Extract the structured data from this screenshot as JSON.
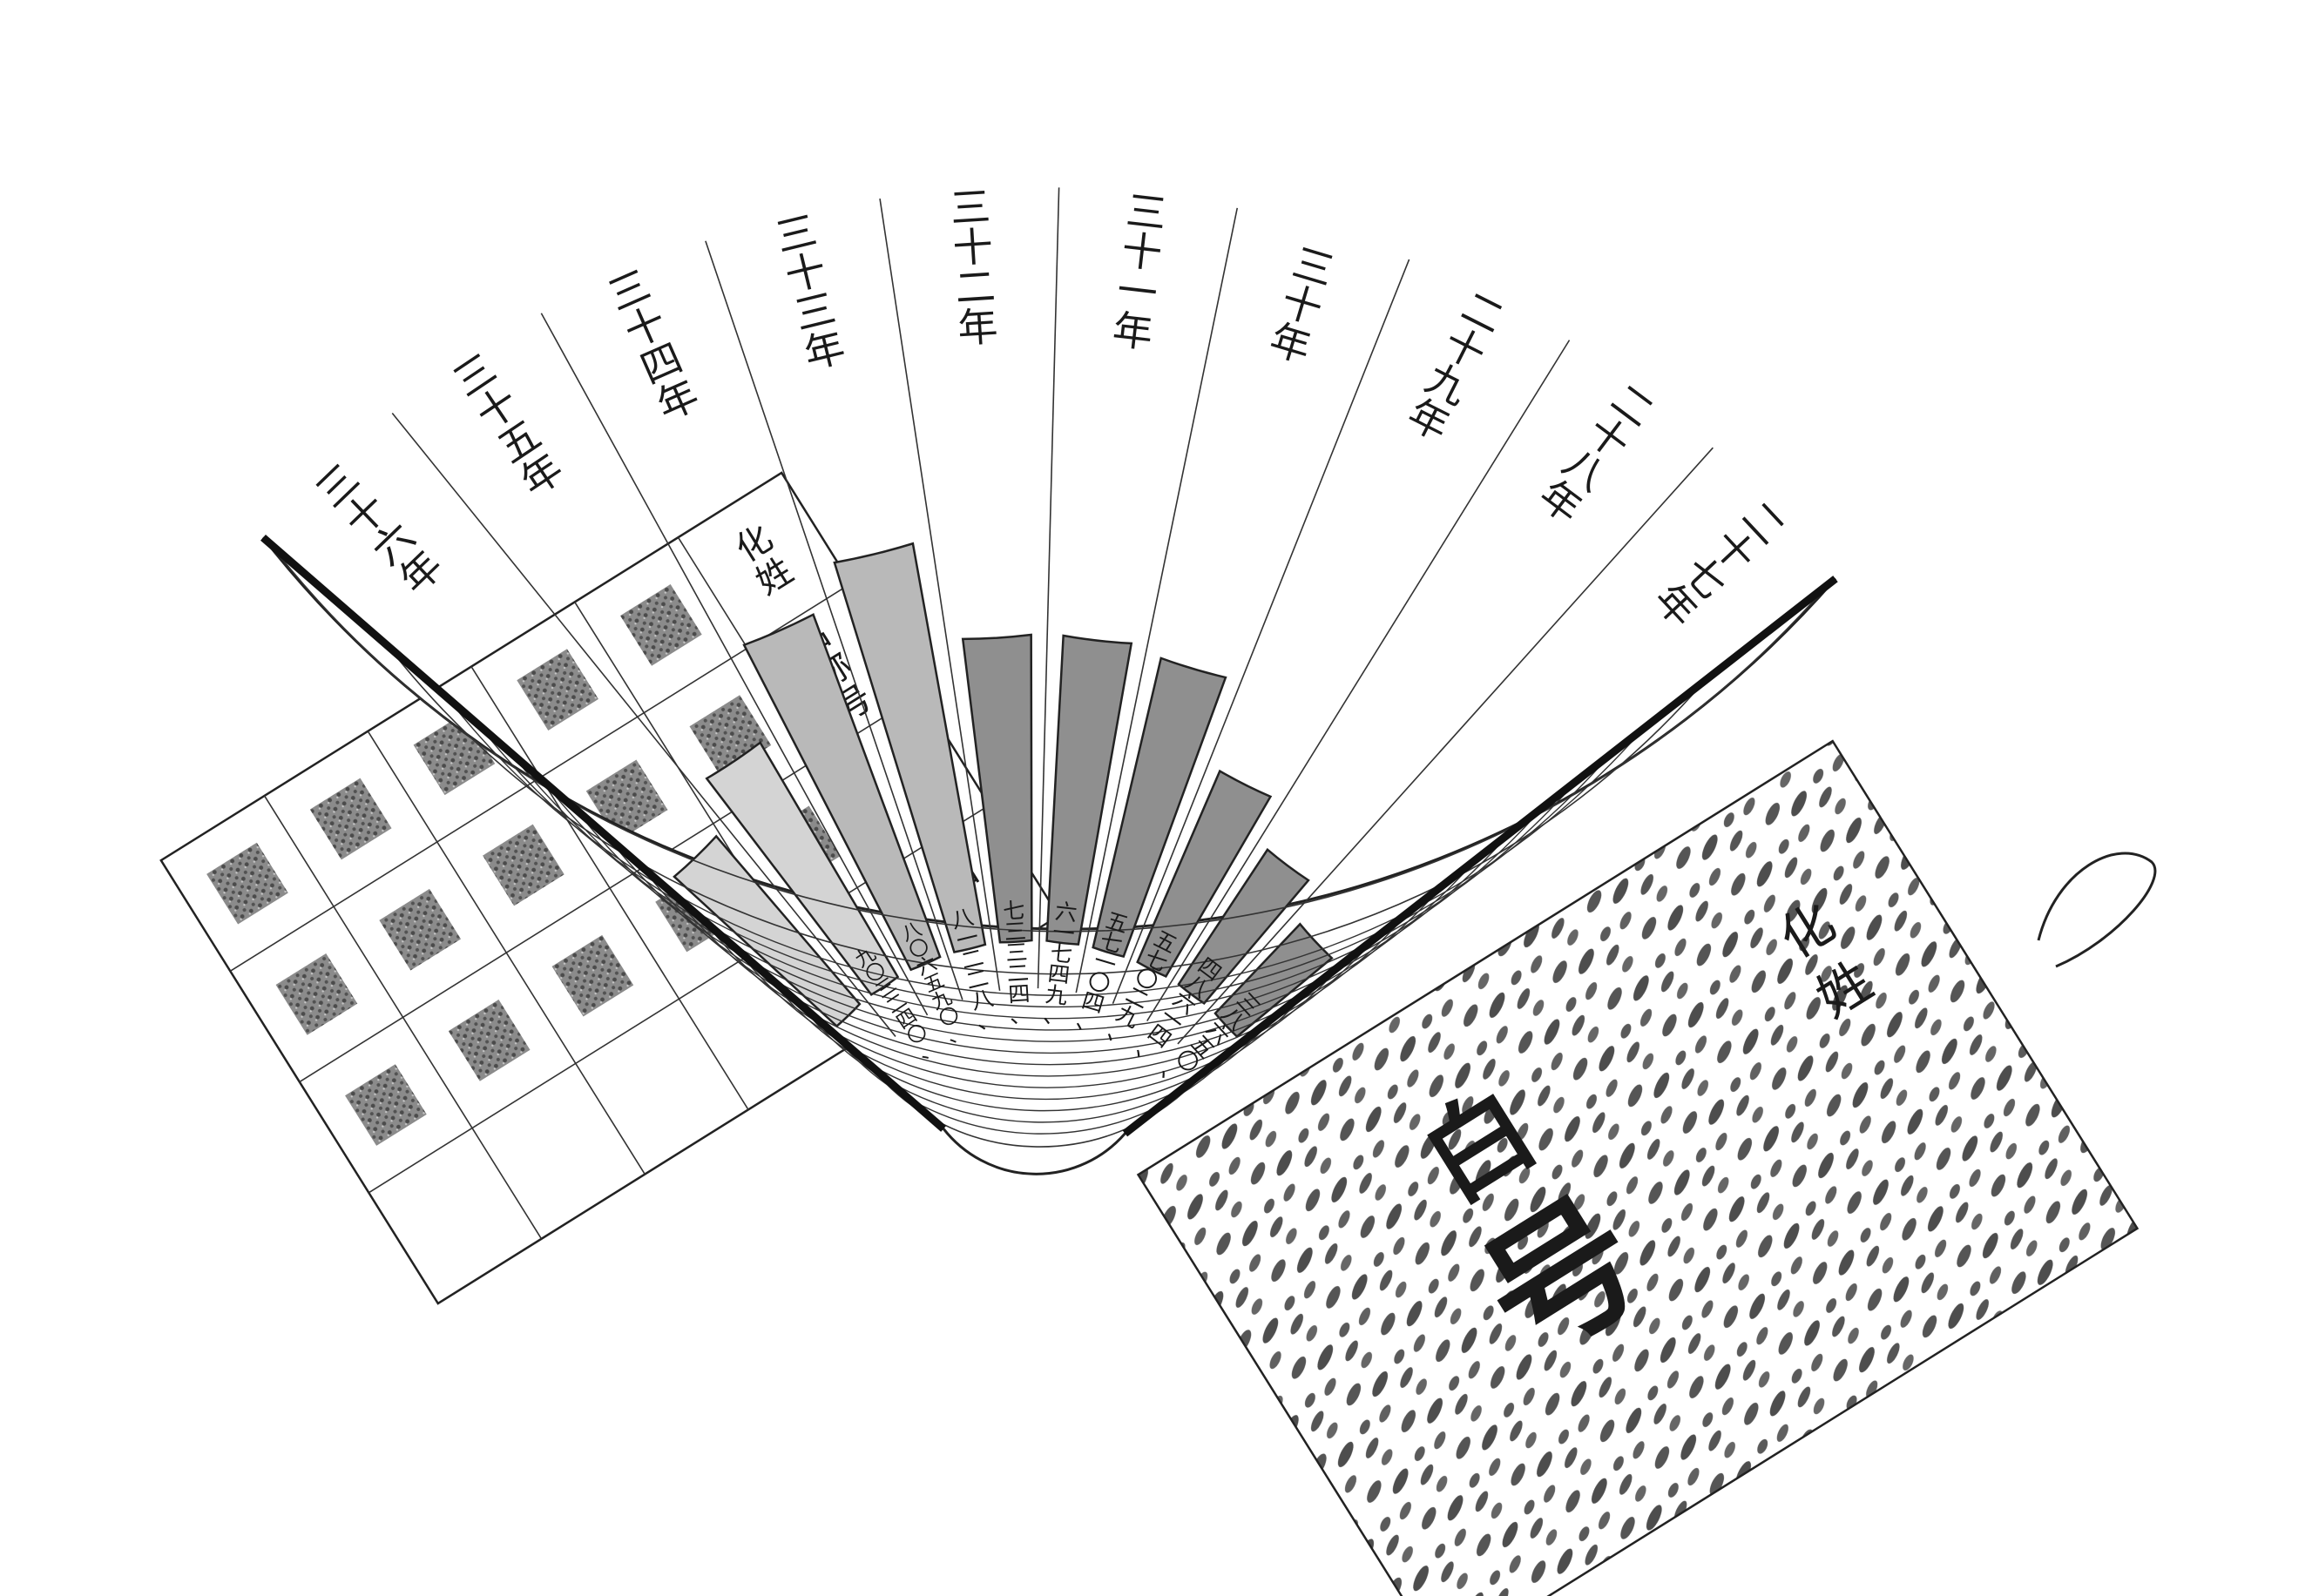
{
  "chart_data": {
    "type": "bar",
    "layout": "radial-fan",
    "categories": [
      "三十六年",
      "三十五年",
      "三十四年",
      "三十三年",
      "三十二年",
      "三十一年",
      "三十年",
      "二十九年",
      "二十八年",
      "二十七年"
    ],
    "value_labels": [
      "",
      "九〇三二四〇、",
      "八〇六五九〇、",
      "八一二二八、",
      "七三三二四、",
      "六一七四九、",
      "五七一〇四、",
      "五七〇二九、",
      "四八六一四、",
      "三八六五〇、"
    ],
    "values": [
      5.2,
      6.4,
      8.6,
      9.6,
      7.2,
      7.2,
      7.0,
      4.9,
      3.8,
      2.9
    ],
    "shading": [
      "light",
      "light",
      "medium",
      "medium",
      "dark",
      "dark",
      "dark",
      "dark",
      "dark",
      "dark"
    ],
    "ylim": [
      0,
      12
    ],
    "grid": true,
    "bar_colors": {
      "light": "#d4d4d4",
      "medium": "#b9b9b9",
      "dark": "#8f8f8f"
    }
  },
  "table": {
    "header": [
      "化",
      "姓",
      "名称",
      "号",
      "氏名"
    ],
    "cells": [
      [
        "[seal]",
        "[seal]",
        "[seal]"
      ],
      [
        "[seal]",
        "[seal]",
        "[seal]"
      ],
      [
        "[seal]",
        "[seal]",
        "[seal]"
      ],
      [
        "[seal]",
        "[seal]",
        "[seal]"
      ],
      [
        "[seal]",
        "[seal]",
        "[seal]"
      ]
    ]
  },
  "card": {
    "label_left": "化",
    "label_right": "姓",
    "stamp_char": "号",
    "stamp_char_2": "白",
    "ink": "#4a4a4a"
  },
  "colors": {
    "ink": "#1a1a1a",
    "paper": "#ffffff",
    "grid": "#333333"
  }
}
